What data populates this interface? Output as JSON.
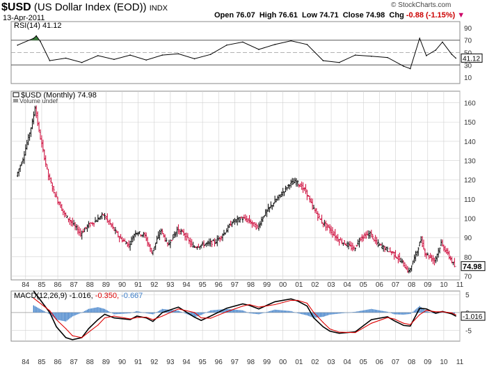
{
  "header": {
    "symbol": "$USD",
    "name": "(US Dollar Index (EOD))",
    "exchange": "INDX",
    "date": "13-Apr-2011",
    "watermark": "© StockCharts.com",
    "open_label": "Open",
    "open": "76.07",
    "high_label": "High",
    "high": "76.61",
    "low_label": "Low",
    "low": "74.71",
    "close_label": "Close",
    "close": "74.98",
    "chg_label": "Chg",
    "chg": "-0.88 (-1.15%)",
    "chg_arrow": "▼"
  },
  "colors": {
    "up": "#000000",
    "down": "#cc0033",
    "rsi_line": "#000000",
    "rsi_fill_over": "#3a7d3a",
    "rsi_fill_under": "#cc3366",
    "macd_line": "#000000",
    "signal_line": "#dd0000",
    "histogram": "#3d7ec8",
    "grid": "#d0d0d0"
  },
  "chart_data": [
    {
      "type": "line",
      "panel": "rsi",
      "label": "RSI(14) 41.12",
      "ylim": [
        0,
        100
      ],
      "yticks": [
        "90",
        "70",
        "50",
        "30",
        "10"
      ],
      "ytick_values": [
        90,
        70,
        50,
        30,
        10
      ],
      "reference_lines": [
        70,
        50,
        30
      ],
      "last_value_label": "41.12",
      "x": [
        "1984-01",
        "1985-01",
        "1985-03",
        "1985-06",
        "1986-01",
        "1987-01",
        "1988-01",
        "1989-01",
        "1990-01",
        "1991-01",
        "1992-01",
        "1993-01",
        "1994-01",
        "1995-01",
        "1996-01",
        "1997-01",
        "1998-01",
        "1999-01",
        "2000-01",
        "2001-01",
        "2002-01",
        "2003-01",
        "2004-01",
        "2005-01",
        "2006-01",
        "2007-01",
        "2008-01",
        "2008-06",
        "2009-01",
        "2009-06",
        "2010-01",
        "2010-06",
        "2011-01",
        "2011-04"
      ],
      "values": [
        62,
        73,
        77,
        68,
        37,
        41,
        34,
        45,
        39,
        46,
        38,
        46,
        48,
        40,
        47,
        62,
        67,
        55,
        63,
        69,
        63,
        37,
        34,
        46,
        44,
        42,
        28,
        24,
        73,
        45,
        54,
        67,
        47,
        41
      ]
    },
    {
      "type": "line",
      "panel": "price",
      "label": "$USD (Monthly) 74.98",
      "sublabel": "Volume undef",
      "ylim": [
        68,
        166
      ],
      "yticks": [
        "160",
        "150",
        "140",
        "130",
        "120",
        "110",
        "100",
        "90",
        "80",
        "70"
      ],
      "ytick_values": [
        160,
        150,
        140,
        130,
        120,
        110,
        100,
        90,
        80,
        70
      ],
      "last_value_label": "74.98",
      "x": [
        "1984-01",
        "1984-06",
        "1985-01",
        "1985-03",
        "1985-06",
        "1985-09",
        "1986-01",
        "1986-06",
        "1987-01",
        "1987-06",
        "1988-01",
        "1988-06",
        "1989-01",
        "1989-06",
        "1990-01",
        "1990-06",
        "1991-01",
        "1991-06",
        "1992-01",
        "1992-06",
        "1993-01",
        "1993-06",
        "1994-01",
        "1994-06",
        "1995-01",
        "1995-06",
        "1996-01",
        "1996-06",
        "1997-01",
        "1997-06",
        "1998-01",
        "1998-06",
        "1999-01",
        "1999-06",
        "2000-01",
        "2000-06",
        "2001-01",
        "2001-06",
        "2002-01",
        "2002-06",
        "2003-01",
        "2003-06",
        "2004-01",
        "2004-06",
        "2005-01",
        "2005-06",
        "2006-01",
        "2006-06",
        "2007-01",
        "2007-06",
        "2008-01",
        "2008-06",
        "2009-01",
        "2009-03",
        "2009-06",
        "2010-01",
        "2010-06",
        "2011-01",
        "2011-04"
      ],
      "values": [
        122,
        131,
        150,
        158,
        145,
        135,
        122,
        112,
        102,
        98,
        92,
        96,
        99,
        102,
        95,
        90,
        86,
        93,
        91,
        82,
        94,
        86,
        94,
        92,
        85,
        86,
        87,
        88,
        93,
        98,
        100,
        99,
        95,
        102,
        108,
        112,
        118,
        119,
        114,
        106,
        98,
        95,
        89,
        87,
        84,
        90,
        92,
        87,
        84,
        82,
        77,
        72,
        85,
        89,
        82,
        78,
        87,
        79,
        75
      ]
    },
    {
      "type": "line",
      "panel": "macd",
      "label": "MACD(12,26,9) -1.016, -0.350, -0.667",
      "label_parts": [
        "MACD(12,26,9)",
        "-1.016,",
        "-0.350,",
        "-0.667"
      ],
      "ylim": [
        -8,
        6
      ],
      "yticks": [
        "5",
        "0",
        "-5"
      ],
      "ytick_values": [
        5,
        0,
        -5
      ],
      "last_value_label": "-1.016",
      "x": [
        "1985-01",
        "1986-01",
        "1986-06",
        "1987-01",
        "1987-06",
        "1988-01",
        "1988-06",
        "1989-01",
        "1989-06",
        "1990-01",
        "1991-01",
        "1991-06",
        "1992-01",
        "1992-06",
        "1993-01",
        "1994-01",
        "1995-01",
        "1995-06",
        "1996-01",
        "1997-01",
        "1998-01",
        "1998-06",
        "1999-01",
        "2000-01",
        "2001-01",
        "2001-06",
        "2002-01",
        "2002-06",
        "2003-01",
        "2003-06",
        "2004-01",
        "2005-01",
        "2006-01",
        "2007-01",
        "2007-06",
        "2008-01",
        "2008-06",
        "2009-01",
        "2009-06",
        "2010-01",
        "2010-06",
        "2011-01",
        "2011-04"
      ],
      "series": [
        {
          "name": "MACD",
          "values": [
            6,
            0,
            -4,
            -7,
            -7.6,
            -7,
            -4.5,
            -2,
            -0.5,
            -1.5,
            -2,
            -1,
            -1.5,
            -2.5,
            0,
            1.5,
            -1.3,
            -2.2,
            -1,
            1.2,
            2.4,
            2,
            1,
            3,
            3.8,
            3.2,
            1.8,
            -1.5,
            -4,
            -5.2,
            -5.8,
            -5.4,
            -2,
            -1.2,
            -2.3,
            -3.6,
            -3.8,
            1.2,
            1,
            -0.2,
            0.3,
            -0.4,
            -1.016
          ]
        },
        {
          "name": "Signal",
          "values": [
            4,
            0.5,
            -2,
            -4.5,
            -6.5,
            -7,
            -5.5,
            -3.5,
            -1.5,
            -1,
            -1.8,
            -1.4,
            -1.3,
            -2,
            -1,
            1,
            0,
            -1.5,
            -1.6,
            0.2,
            1.8,
            2.2,
            1.5,
            2.2,
            3.4,
            3.4,
            2.6,
            0,
            -2.8,
            -4.6,
            -5.5,
            -5.6,
            -3,
            -1.4,
            -1.8,
            -3,
            -3.4,
            -0.6,
            0.6,
            0.2,
            0.2,
            -0.1,
            -0.667
          ]
        },
        {
          "name": "Histogram",
          "values": [
            2,
            -0.5,
            -2,
            -2.5,
            -1.1,
            0,
            1,
            1.5,
            1,
            -0.5,
            -0.2,
            0.4,
            -0.2,
            -0.5,
            1,
            0.5,
            -1.3,
            -0.7,
            0.6,
            1,
            0.6,
            -0.2,
            -0.5,
            0.8,
            0.4,
            -0.2,
            -0.8,
            -1.5,
            -1.2,
            -0.6,
            -0.3,
            0.2,
            1,
            0.2,
            -0.5,
            -0.6,
            -0.4,
            1.8,
            0.4,
            -0.4,
            0.1,
            -0.3,
            -0.35
          ]
        }
      ]
    }
  ],
  "x_axis": {
    "ticks": [
      "84",
      "85",
      "86",
      "87",
      "88",
      "89",
      "90",
      "91",
      "92",
      "93",
      "94",
      "95",
      "96",
      "97",
      "98",
      "99",
      "00",
      "01",
      "02",
      "03",
      "04",
      "05",
      "06",
      "07",
      "08",
      "09",
      "10",
      "11"
    ]
  }
}
